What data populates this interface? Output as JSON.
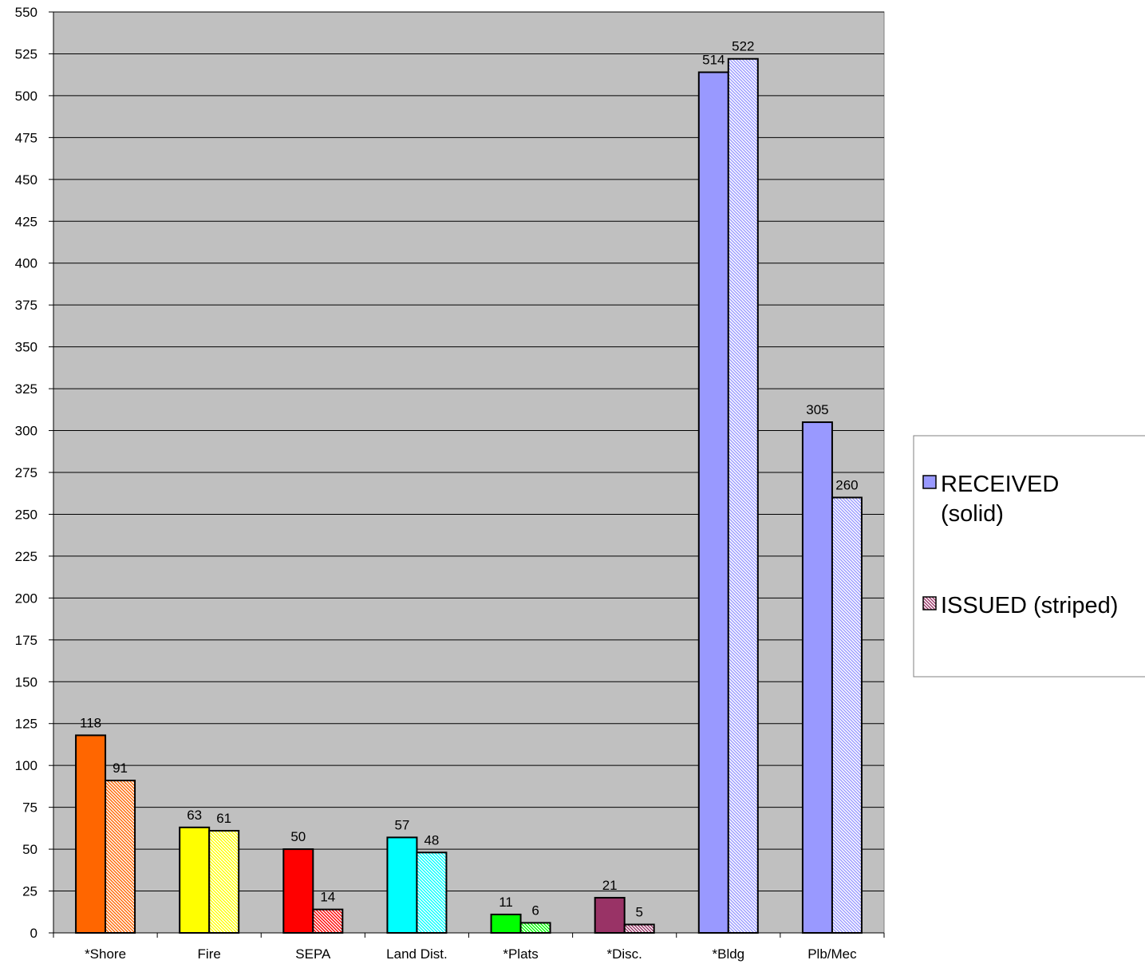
{
  "chart_data": {
    "type": "bar",
    "title": "",
    "xlabel": "",
    "ylabel": "",
    "ylim": [
      0,
      550
    ],
    "ytick_step": 25,
    "grid": true,
    "legend_position": "right",
    "plot_background": "#c0c0c0",
    "categories": [
      "*Shore",
      "Fire",
      "SEPA",
      "Land Dist.",
      "*Plats",
      "*Disc.",
      "*Bldg",
      "Plb/Mec"
    ],
    "category_colors": [
      "#ff6600",
      "#ffff00",
      "#ff0000",
      "#00ffff",
      "#00ff00",
      "#993366",
      "#9999ff",
      "#9999ff"
    ],
    "series": [
      {
        "name": "RECEIVED (solid)",
        "legend_lines": [
          "RECEIVED",
          "(solid)"
        ],
        "pattern": "solid",
        "legend_color": "#9999ff",
        "values": [
          118,
          63,
          50,
          57,
          11,
          21,
          514,
          305
        ]
      },
      {
        "name": "ISSUED (striped)",
        "legend_lines": [
          "ISSUED (striped)"
        ],
        "pattern": "striped",
        "legend_color": "#993366",
        "values": [
          91,
          61,
          14,
          48,
          6,
          5,
          522,
          260
        ]
      }
    ]
  }
}
